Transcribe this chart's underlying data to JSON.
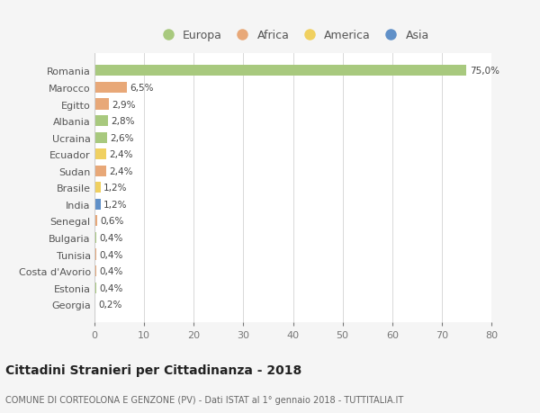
{
  "countries": [
    "Romania",
    "Marocco",
    "Egitto",
    "Albania",
    "Ucraina",
    "Ecuador",
    "Sudan",
    "Brasile",
    "India",
    "Senegal",
    "Bulgaria",
    "Tunisia",
    "Costa d'Avorio",
    "Estonia",
    "Georgia"
  ],
  "values": [
    75.0,
    6.5,
    2.9,
    2.8,
    2.6,
    2.4,
    2.4,
    1.2,
    1.2,
    0.6,
    0.4,
    0.4,
    0.4,
    0.4,
    0.2
  ],
  "labels": [
    "75,0%",
    "6,5%",
    "2,9%",
    "2,8%",
    "2,6%",
    "2,4%",
    "2,4%",
    "1,2%",
    "1,2%",
    "0,6%",
    "0,4%",
    "0,4%",
    "0,4%",
    "0,4%",
    "0,2%"
  ],
  "continents": [
    "Europa",
    "Africa",
    "Africa",
    "Europa",
    "Europa",
    "America",
    "Africa",
    "America",
    "Asia",
    "Africa",
    "Europa",
    "Africa",
    "Africa",
    "Europa",
    "Europa"
  ],
  "colors": {
    "Europa": "#a8c97e",
    "Africa": "#e8a878",
    "America": "#f0d060",
    "Asia": "#6090c8"
  },
  "xlim": [
    0,
    80
  ],
  "xticks": [
    0,
    10,
    20,
    30,
    40,
    50,
    60,
    70,
    80
  ],
  "title": "Cittadini Stranieri per Cittadinanza - 2018",
  "subtitle": "COMUNE DI CORTEOLONA E GENZONE (PV) - Dati ISTAT al 1° gennaio 2018 - TUTTITALIA.IT",
  "background_color": "#f5f5f5",
  "bar_background": "#ffffff",
  "grid_color": "#d8d8d8",
  "legend_order": [
    "Europa",
    "Africa",
    "America",
    "Asia"
  ]
}
